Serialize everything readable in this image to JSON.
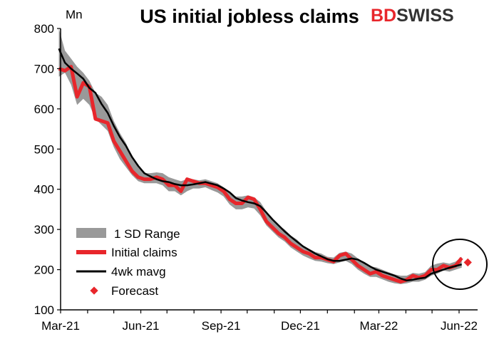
{
  "chart_data": {
    "type": "line",
    "title": "US initial jobless claims",
    "ylabel": "Mn",
    "ylim": [
      100,
      800
    ],
    "yticks": [
      100,
      200,
      300,
      400,
      500,
      600,
      700,
      800
    ],
    "xlabels": [
      "Mar-21",
      "Jun-21",
      "Sep-21",
      "Dec-21",
      "Mar-22",
      "Jun-22"
    ],
    "grid": false,
    "legend_position": "bottom-left",
    "legend": [
      "1 SD Range",
      "Initial claims",
      "4wk mavg",
      "Forecast"
    ],
    "x_dates": [
      "2021-02-27",
      "2021-03-06",
      "2021-03-13",
      "2021-03-20",
      "2021-03-27",
      "2021-04-03",
      "2021-04-10",
      "2021-04-17",
      "2021-04-24",
      "2021-05-01",
      "2021-05-08",
      "2021-05-15",
      "2021-05-22",
      "2021-05-29",
      "2021-06-05",
      "2021-06-12",
      "2021-06-19",
      "2021-06-26",
      "2021-07-03",
      "2021-07-10",
      "2021-07-17",
      "2021-07-24",
      "2021-07-31",
      "2021-08-07",
      "2021-08-14",
      "2021-08-21",
      "2021-08-28",
      "2021-09-04",
      "2021-09-11",
      "2021-09-18",
      "2021-09-25",
      "2021-10-02",
      "2021-10-09",
      "2021-10-16",
      "2021-10-23",
      "2021-10-30",
      "2021-11-06",
      "2021-11-13",
      "2021-11-20",
      "2021-11-27",
      "2021-12-04",
      "2021-12-11",
      "2021-12-18",
      "2021-12-25",
      "2022-01-01",
      "2022-01-08",
      "2022-01-15",
      "2022-01-22",
      "2022-01-29",
      "2022-02-05",
      "2022-02-12",
      "2022-02-19",
      "2022-02-26",
      "2022-03-05",
      "2022-03-12",
      "2022-03-19",
      "2022-03-26",
      "2022-04-02",
      "2022-04-09",
      "2022-04-16",
      "2022-04-23",
      "2022-04-30",
      "2022-05-07",
      "2022-05-14",
      "2022-05-21",
      "2022-05-28",
      "2022-06-04"
    ],
    "series": [
      {
        "name": "Initial claims",
        "color": "#e8262b",
        "values": [
          700,
          695,
          705,
          630,
          665,
          655,
          575,
          570,
          565,
          520,
          495,
          470,
          445,
          430,
          425,
          425,
          430,
          425,
          410,
          410,
          395,
          425,
          420,
          415,
          415,
          410,
          405,
          395,
          375,
          365,
          365,
          380,
          375,
          350,
          320,
          305,
          290,
          280,
          265,
          255,
          245,
          240,
          230,
          230,
          225,
          220,
          235,
          240,
          225,
          210,
          200,
          190,
          195,
          185,
          180,
          175,
          170,
          175,
          185,
          180,
          185,
          200,
          200,
          210,
          205,
          210,
          229
        ]
      },
      {
        "name": "4wk mavg",
        "color": "#000000",
        "values": [
          750,
          715,
          700,
          688,
          675,
          652,
          640,
          612,
          590,
          558,
          530,
          508,
          480,
          458,
          440,
          432,
          425,
          420,
          418,
          413,
          410,
          410,
          412,
          415,
          418,
          414,
          410,
          402,
          392,
          378,
          372,
          368,
          365,
          358,
          342,
          325,
          310,
          295,
          282,
          270,
          258,
          249,
          240,
          233,
          226,
          222,
          222,
          225,
          228,
          225,
          217,
          208,
          200,
          195,
          190,
          185,
          178,
          173,
          175,
          178,
          180,
          190,
          195,
          200,
          205,
          209,
          213
        ]
      },
      {
        "name": "1 SD Range",
        "color": "#999999",
        "lower": [
          680,
          690,
          660,
          610,
          625,
          610,
          575,
          560,
          545,
          505,
          475,
          455,
          435,
          420,
          415,
          415,
          415,
          410,
          395,
          395,
          385,
          395,
          402,
          402,
          405,
          398,
          392,
          382,
          362,
          350,
          350,
          355,
          352,
          335,
          310,
          295,
          280,
          270,
          255,
          245,
          235,
          228,
          222,
          220,
          216,
          214,
          218,
          222,
          214,
          200,
          190,
          182,
          182,
          176,
          170,
          166,
          164,
          166,
          170,
          170,
          175,
          185,
          190,
          198,
          195,
          200,
          205
        ],
        "upper": [
          800,
          745,
          725,
          705,
          690,
          670,
          640,
          630,
          610,
          570,
          540,
          515,
          480,
          455,
          440,
          440,
          442,
          440,
          430,
          425,
          420,
          425,
          425,
          422,
          425,
          420,
          415,
          405,
          390,
          382,
          382,
          385,
          380,
          368,
          345,
          325,
          310,
          300,
          285,
          275,
          260,
          252,
          244,
          240,
          232,
          230,
          242,
          245,
          240,
          228,
          218,
          208,
          206,
          200,
          194,
          188,
          185,
          185,
          192,
          190,
          194,
          210,
          215,
          218,
          215,
          220,
          232
        ]
      },
      {
        "name": "Forecast",
        "color": "#e8262b",
        "x_date": "2022-06-11",
        "value": 218
      }
    ]
  },
  "logo": {
    "text_primary": "BD",
    "text_secondary": "SWISS",
    "primary_color": "#e8262b",
    "secondary_color": "#333333"
  }
}
